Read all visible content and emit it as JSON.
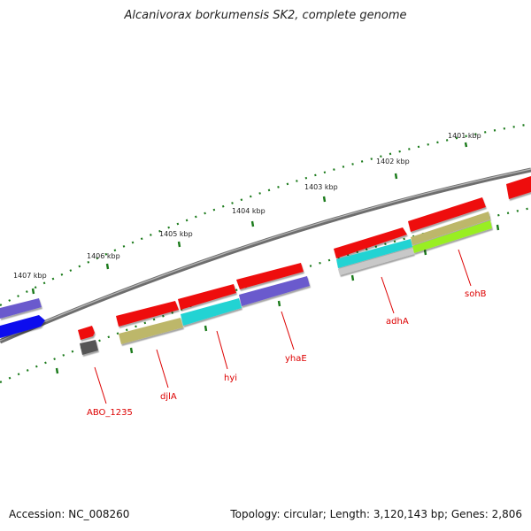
{
  "title": "Alcanivorax borkumensis SK2, complete genome",
  "footer": {
    "accession": "Accession: NC_008260",
    "stats": "Topology: circular; Length: 3,120,143 bp; Genes: 2,806"
  },
  "kbp_ticks": [
    "1401 kbp",
    "1402 kbp",
    "1403 kbp",
    "1404 kbp",
    "1405 kbp",
    "1406 kbp",
    "1407 kbp"
  ],
  "gene_labels": [
    "ABO_1235",
    "djlA",
    "hyi",
    "yhaE",
    "adhA",
    "sohB"
  ],
  "colors": {
    "backbone": "#707070",
    "tick_dots": "#1a7a1a",
    "gene_red": "#ee1111",
    "blue": "#1111ee",
    "purple": "#6a5acd",
    "olive": "#bdb76b",
    "cyan": "#22d3d3",
    "lime": "#99ee22",
    "grey": "#555555",
    "label_red": "#dd0000"
  }
}
